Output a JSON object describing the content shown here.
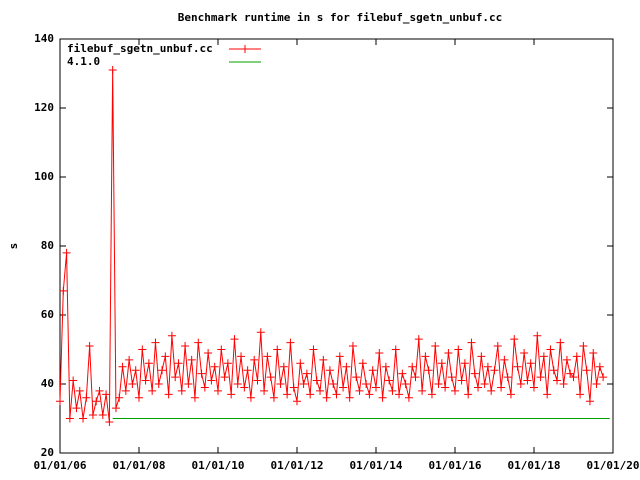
{
  "chart_data": {
    "type": "line",
    "title": "Benchmark runtime in s for filebuf_sgetn_unbuf.cc",
    "y_label": "s",
    "ylim": [
      20,
      140
    ],
    "yticks": [
      20,
      40,
      60,
      80,
      100,
      120,
      140
    ],
    "xlim": [
      "2006-01-01",
      "2020-01-01"
    ],
    "xticks": [
      {
        "value": "2006-01-01",
        "label": "01/01/06"
      },
      {
        "value": "2008-01-01",
        "label": "01/01/08"
      },
      {
        "value": "2010-01-01",
        "label": "01/01/10"
      },
      {
        "value": "2012-01-01",
        "label": "01/01/12"
      },
      {
        "value": "2014-01-01",
        "label": "01/01/14"
      },
      {
        "value": "2016-01-01",
        "label": "01/01/16"
      },
      {
        "value": "2018-01-01",
        "label": "01/01/18"
      },
      {
        "value": "2020-01-01",
        "label": "01/01/20"
      }
    ],
    "legend": "top-left",
    "series": [
      {
        "name": "filebuf_sgetn_unbuf.cc",
        "color": "#ff0000",
        "marker": "+",
        "x": [
          "2006-01",
          "2006-02",
          "2006-03",
          "2006-04",
          "2006-05",
          "2006-06",
          "2006-07",
          "2006-08",
          "2006-09",
          "2006-10",
          "2006-11",
          "2006-12",
          "2007-01",
          "2007-02",
          "2007-03",
          "2007-04",
          "2007-05",
          "2007-06",
          "2007-07",
          "2007-08",
          "2007-09",
          "2007-10",
          "2007-11",
          "2007-12",
          "2008-01",
          "2008-02",
          "2008-03",
          "2008-04",
          "2008-05",
          "2008-06",
          "2008-07",
          "2008-08",
          "2008-09",
          "2008-10",
          "2008-11",
          "2008-12",
          "2009-01",
          "2009-02",
          "2009-03",
          "2009-04",
          "2009-05",
          "2009-06",
          "2009-07",
          "2009-08",
          "2009-09",
          "2009-10",
          "2009-11",
          "2009-12",
          "2010-01",
          "2010-02",
          "2010-03",
          "2010-04",
          "2010-05",
          "2010-06",
          "2010-07",
          "2010-08",
          "2010-09",
          "2010-10",
          "2010-11",
          "2010-12",
          "2011-01",
          "2011-02",
          "2011-03",
          "2011-04",
          "2011-05",
          "2011-06",
          "2011-07",
          "2011-08",
          "2011-09",
          "2011-10",
          "2011-11",
          "2011-12",
          "2012-01",
          "2012-02",
          "2012-03",
          "2012-04",
          "2012-05",
          "2012-06",
          "2012-07",
          "2012-08",
          "2012-09",
          "2012-10",
          "2012-11",
          "2012-12",
          "2013-01",
          "2013-02",
          "2013-03",
          "2013-04",
          "2013-05",
          "2013-06",
          "2013-07",
          "2013-08",
          "2013-09",
          "2013-10",
          "2013-11",
          "2013-12",
          "2014-01",
          "2014-02",
          "2014-03",
          "2014-04",
          "2014-05",
          "2014-06",
          "2014-07",
          "2014-08",
          "2014-09",
          "2014-10",
          "2014-11",
          "2014-12",
          "2015-01",
          "2015-02",
          "2015-03",
          "2015-04",
          "2015-05",
          "2015-06",
          "2015-07",
          "2015-08",
          "2015-09",
          "2015-10",
          "2015-11",
          "2015-12",
          "2016-01",
          "2016-02",
          "2016-03",
          "2016-04",
          "2016-05",
          "2016-06",
          "2016-07",
          "2016-08",
          "2016-09",
          "2016-10",
          "2016-11",
          "2016-12",
          "2017-01",
          "2017-02",
          "2017-03",
          "2017-04",
          "2017-05",
          "2017-06",
          "2017-07",
          "2017-08",
          "2017-09",
          "2017-10",
          "2017-11",
          "2017-12",
          "2018-01",
          "2018-02",
          "2018-03",
          "2018-04",
          "2018-05",
          "2018-06",
          "2018-07",
          "2018-08",
          "2018-09",
          "2018-10",
          "2018-11",
          "2018-12",
          "2019-01",
          "2019-02",
          "2019-03",
          "2019-04",
          "2019-05",
          "2019-06",
          "2019-07",
          "2019-08",
          "2019-09",
          "2019-10"
        ],
        "values": [
          35,
          67,
          78,
          30,
          41,
          33,
          38,
          30,
          36,
          51,
          31,
          35,
          38,
          31,
          37,
          29,
          131,
          33,
          36,
          45,
          38,
          47,
          40,
          44,
          36,
          50,
          41,
          46,
          38,
          52,
          40,
          44,
          48,
          37,
          54,
          42,
          46,
          38,
          51,
          40,
          47,
          36,
          52,
          43,
          39,
          49,
          41,
          45,
          38,
          50,
          42,
          46,
          37,
          53,
          40,
          48,
          39,
          44,
          36,
          47,
          41,
          55,
          38,
          48,
          42,
          36,
          50,
          40,
          45,
          37,
          52,
          39,
          35,
          46,
          40,
          43,
          37,
          50,
          41,
          38,
          47,
          36,
          44,
          40,
          37,
          48,
          39,
          45,
          36,
          51,
          42,
          38,
          46,
          40,
          37,
          44,
          39,
          49,
          36,
          45,
          41,
          38,
          50,
          37,
          43,
          40,
          36,
          45,
          42,
          53,
          38,
          48,
          44,
          37,
          51,
          40,
          46,
          39,
          49,
          42,
          38,
          50,
          41,
          46,
          37,
          52,
          43,
          39,
          48,
          40,
          45,
          38,
          44,
          51,
          39,
          47,
          42,
          37,
          53,
          45,
          40,
          49,
          41,
          46,
          39,
          54,
          42,
          48,
          37,
          50,
          44,
          41,
          52,
          40,
          47,
          43,
          42,
          48,
          37,
          51,
          44,
          35,
          49,
          40,
          45,
          42
        ]
      },
      {
        "name": "4.1.0",
        "color": "#00a000",
        "x": [
          "2007-05",
          "2019-12"
        ],
        "values": [
          30,
          30
        ]
      }
    ]
  }
}
